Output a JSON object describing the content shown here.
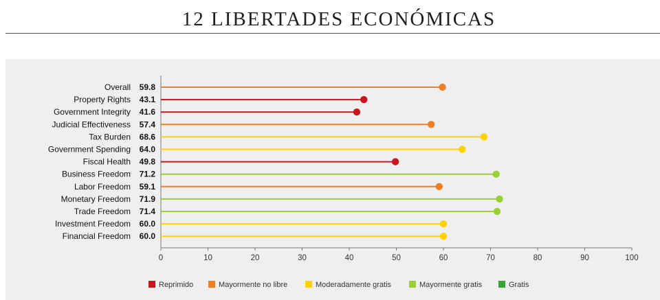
{
  "title": "12 LIBERTADES ECONÓMICAS",
  "colors": {
    "reprimido": "#c8161e",
    "mayormente_no_libre": "#f07f23",
    "moderadamente_gratis": "#ffd200",
    "mayormente_gratis": "#9bcf36",
    "gratis": "#3aa436",
    "axis": "#777777",
    "panel": "#efefef"
  },
  "chart_data": {
    "type": "lollipop",
    "title": "12 LIBERTADES ECONÓMICAS",
    "categories": [
      "Overall",
      "Property Rights",
      "Government Integrity",
      "Judicial Effectiveness",
      "Tax Burden",
      "Government Spending",
      "Fiscal Health",
      "Business Freedom",
      "Labor Freedom",
      "Monetary Freedom",
      "Trade Freedom",
      "Investment Freedom",
      "Financial Freedom"
    ],
    "values": [
      59.8,
      43.1,
      41.6,
      57.4,
      68.6,
      64.0,
      49.8,
      71.2,
      59.1,
      71.9,
      71.4,
      60.0,
      60.0
    ],
    "value_labels": [
      "59.8",
      "43.1",
      "41.6",
      "57.4",
      "68.6",
      "64.0",
      "49.8",
      "71.2",
      "59.1",
      "71.9",
      "71.4",
      "60.0",
      "60.0"
    ],
    "series_colors": [
      "#f07f23",
      "#c8161e",
      "#c8161e",
      "#f07f23",
      "#ffd200",
      "#ffd200",
      "#c8161e",
      "#9bcf36",
      "#f07f23",
      "#9bcf36",
      "#9bcf36",
      "#ffd200",
      "#ffd200"
    ],
    "xlim": [
      0,
      100
    ],
    "xticks": [
      "0",
      "10",
      "20",
      "30",
      "40",
      "50",
      "60",
      "70",
      "80",
      "90",
      "100"
    ],
    "grid": false,
    "legend_position": "bottom",
    "legend": [
      {
        "label": "Reprimido",
        "color": "#c8161e"
      },
      {
        "label": "Mayormente no libre",
        "color": "#f07f23"
      },
      {
        "label": "Moderadamente gratis",
        "color": "#ffd200"
      },
      {
        "label": "Mayormente gratis",
        "color": "#9bcf36"
      },
      {
        "label": "Gratis",
        "color": "#3aa436"
      }
    ]
  }
}
